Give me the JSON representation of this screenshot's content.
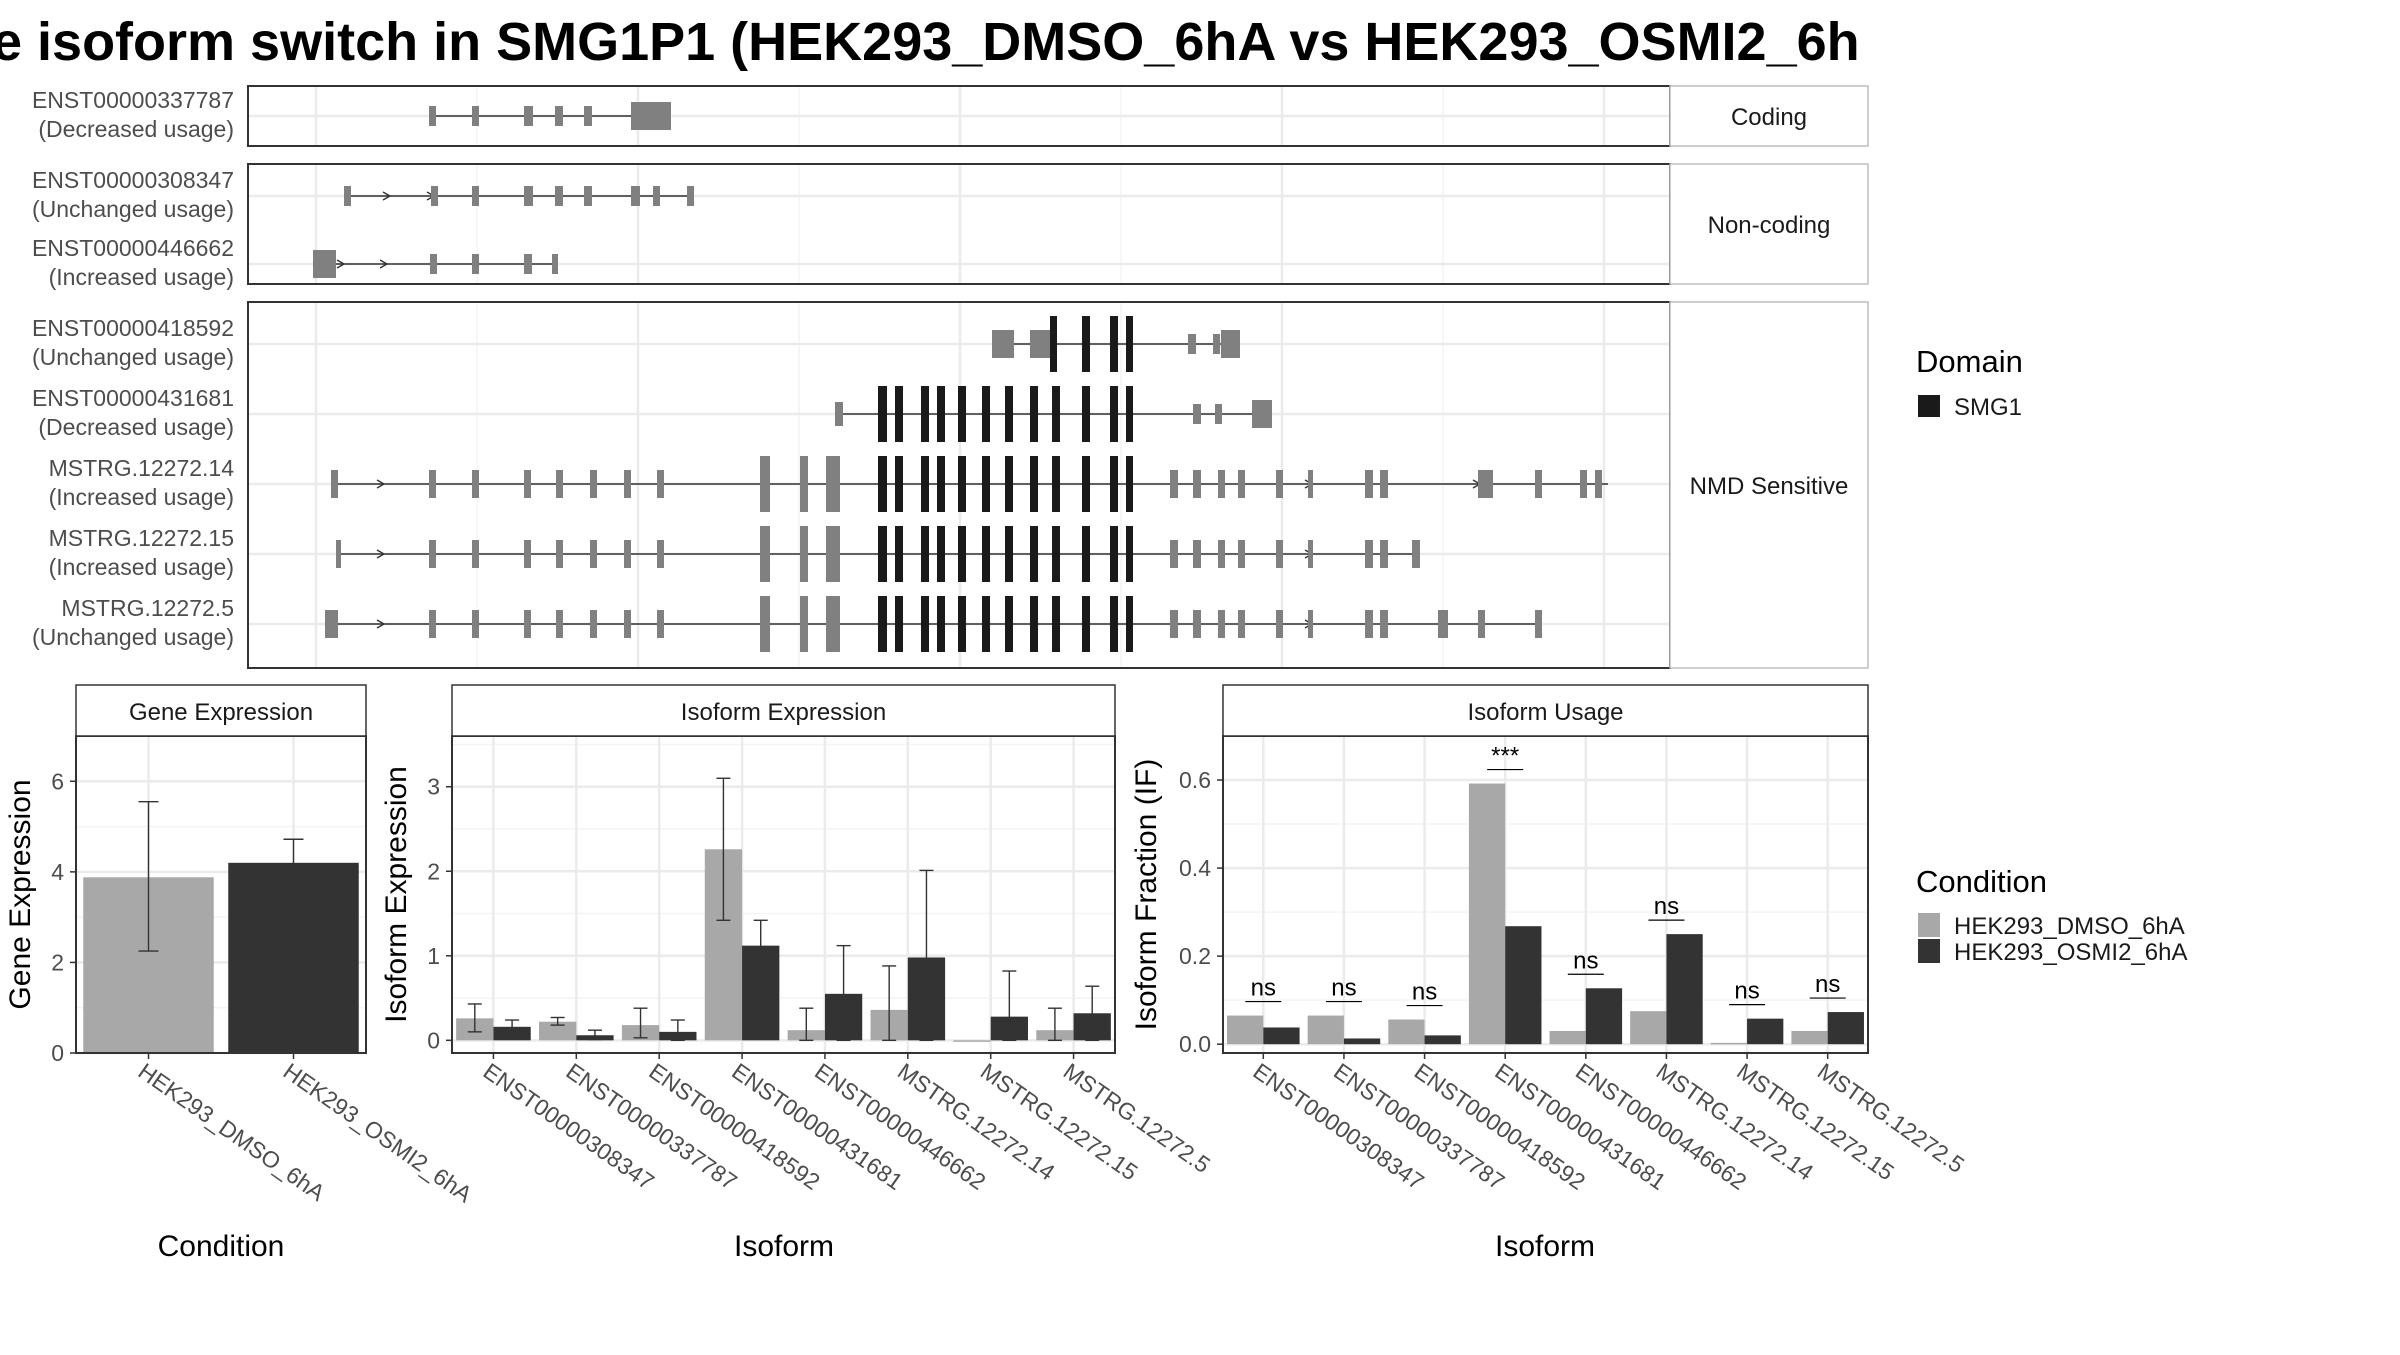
{
  "title": "e isoform switch in SMG1P1 (HEK293_DMSO_6hA vs HEK293_OSMI2_6h",
  "colors": {
    "dmso": "#a8a8a8",
    "osmi2": "#333333",
    "domain": "#1a1a1a",
    "exon": "#808080",
    "grid": "#ebebeb",
    "strip_bg": "#ffffff",
    "frame": "#333333"
  },
  "structure": {
    "facets": [
      {
        "label": "Coding",
        "rows": [
          {
            "name": "ENST00000337787",
            "status": "(Decreased usage)"
          }
        ]
      },
      {
        "label": "Non-coding",
        "rows": [
          {
            "name": "ENST00000308347",
            "status": "(Unchanged usage)"
          },
          {
            "name": "ENST00000446662",
            "status": "(Increased usage)"
          }
        ]
      },
      {
        "label": "NMD Sensitive",
        "rows": [
          {
            "name": "ENST00000418592",
            "status": "(Unchanged usage)"
          },
          {
            "name": "ENST00000431681",
            "status": "(Decreased usage)"
          },
          {
            "name": "MSTRG.12272.14",
            "status": "(Increased usage)"
          },
          {
            "name": "MSTRG.12272.15",
            "status": "(Increased usage)"
          },
          {
            "name": "MSTRG.12272.5",
            "status": "(Unchanged usage)"
          }
        ]
      }
    ]
  },
  "legend_domain": {
    "title": "Domain",
    "items": [
      {
        "label": "SMG1",
        "color": "#1a1a1a"
      }
    ]
  },
  "legend_condition": {
    "title": "Condition",
    "items": [
      {
        "label": "HEK293_DMSO_6hA",
        "color": "#a8a8a8"
      },
      {
        "label": "HEK293_OSMI2_6hA",
        "color": "#333333"
      }
    ]
  },
  "chart_data": [
    {
      "type": "bar",
      "title": "Gene Expression",
      "xlabel": "Condition",
      "ylabel": "Gene Expression",
      "ylim": [
        0,
        7
      ],
      "yticks": [
        0,
        2,
        4,
        6
      ],
      "categories": [
        "HEK293_DMSO_6hA",
        "HEK293_OSMI2_6hA"
      ],
      "values": [
        3.88,
        4.2
      ],
      "err_low": [
        2.25,
        3.7
      ],
      "err_high": [
        5.55,
        4.72
      ],
      "bar_colors": [
        "#a8a8a8",
        "#333333"
      ]
    },
    {
      "type": "bar",
      "title": "Isoform Expression",
      "xlabel": "Isoform",
      "ylabel": "Isoform Expression",
      "ylim": [
        -0.15,
        3.6
      ],
      "yticks": [
        0,
        1,
        2,
        3
      ],
      "categories": [
        "ENST00000308347",
        "ENST00000337787",
        "ENST00000418592",
        "ENST00000431681",
        "ENST00000446662",
        "MSTRG.12272.14",
        "MSTRG.12272.15",
        "MSTRG.12272.5"
      ],
      "series": [
        {
          "name": "HEK293_DMSO_6hA",
          "values": [
            0.26,
            0.22,
            0.18,
            2.26,
            0.12,
            0.36,
            0.0,
            0.12
          ],
          "err_low": [
            0.1,
            0.18,
            0.03,
            1.42,
            0.0,
            0.0,
            0.0,
            0.0
          ],
          "err_high": [
            0.43,
            0.27,
            0.38,
            3.1,
            0.38,
            0.88,
            0.0,
            0.38
          ]
        },
        {
          "name": "HEK293_OSMI2_6hA",
          "values": [
            0.16,
            0.06,
            0.1,
            1.12,
            0.55,
            0.98,
            0.28,
            0.32
          ],
          "err_low": [
            0.08,
            0.01,
            0.0,
            0.83,
            0.0,
            0.0,
            0.0,
            0.0
          ],
          "err_high": [
            0.24,
            0.12,
            0.24,
            1.42,
            1.12,
            2.01,
            0.82,
            0.64
          ]
        }
      ]
    },
    {
      "type": "bar",
      "title": "Isoform Usage",
      "xlabel": "Isoform",
      "ylabel": "Isoform Fraction (IF)",
      "ylim": [
        -0.02,
        0.7
      ],
      "yticks": [
        0.0,
        0.2,
        0.4,
        0.6
      ],
      "ytick_labels": [
        "0.0",
        "0.2",
        "0.4",
        "0.6"
      ],
      "categories": [
        "ENST00000308347",
        "ENST00000337787",
        "ENST00000418592",
        "ENST00000431681",
        "ENST00000446662",
        "MSTRG.12272.14",
        "MSTRG.12272.15",
        "MSTRG.12272.5"
      ],
      "series": [
        {
          "name": "HEK293_DMSO_6hA",
          "values": [
            0.065,
            0.065,
            0.056,
            0.592,
            0.03,
            0.075,
            0.003,
            0.03
          ]
        },
        {
          "name": "HEK293_OSMI2_6hA",
          "values": [
            0.038,
            0.013,
            0.02,
            0.268,
            0.127,
            0.25,
            0.058,
            0.073
          ]
        }
      ],
      "significance": [
        "ns",
        "ns",
        "ns",
        "***",
        "ns",
        "ns",
        "ns",
        "ns"
      ]
    }
  ]
}
